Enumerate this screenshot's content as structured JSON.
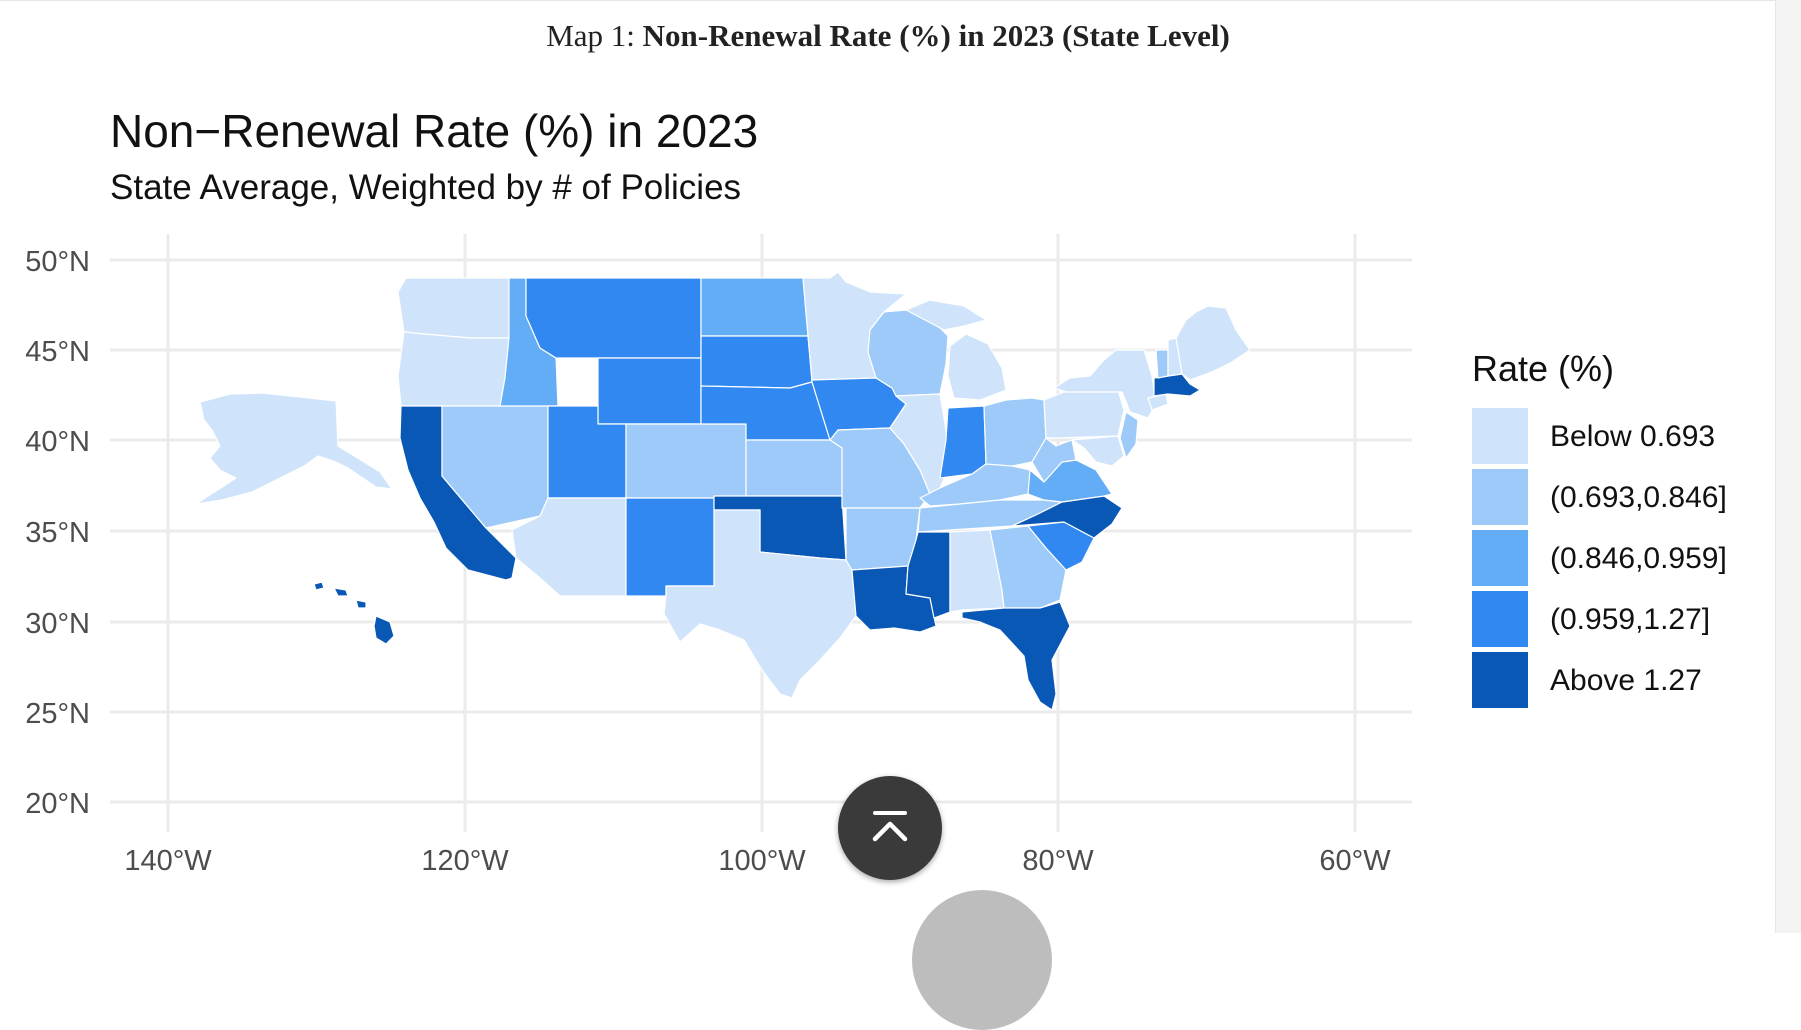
{
  "caption": {
    "prefix": "Map 1: ",
    "bold": "Non-Renewal Rate (%) in 2023 (State Level)"
  },
  "map": {
    "title": "Non−Renewal Rate (%) in 2023",
    "subtitle": "State Average, Weighted by # of Policies",
    "lat_ticks": [
      "50°N",
      "45°N",
      "40°N",
      "35°N",
      "30°N",
      "25°N",
      "20°N"
    ],
    "lon_ticks": [
      "140°W",
      "120°W",
      "100°W",
      "80°W",
      "60°W"
    ]
  },
  "legend": {
    "title": "Rate (%)",
    "items": [
      {
        "label": "Below 0.693",
        "color": "#cfe4fb"
      },
      {
        "label": "(0.693,0.846]",
        "color": "#9dcaf8"
      },
      {
        "label": "(0.846,0.959]",
        "color": "#62adf5"
      },
      {
        "label": "(0.959,1.27]",
        "color": "#3088f0"
      },
      {
        "label": "Above 1.27",
        "color": "#0a58b6"
      }
    ]
  },
  "colors": {
    "background": "#ffffff",
    "grid": "#ebebeb",
    "axis_text": "#4d4d4d",
    "button_bg": "#3a3a3a"
  },
  "icons": {
    "scroll_top": "chevron-up-with-bar-icon"
  }
}
